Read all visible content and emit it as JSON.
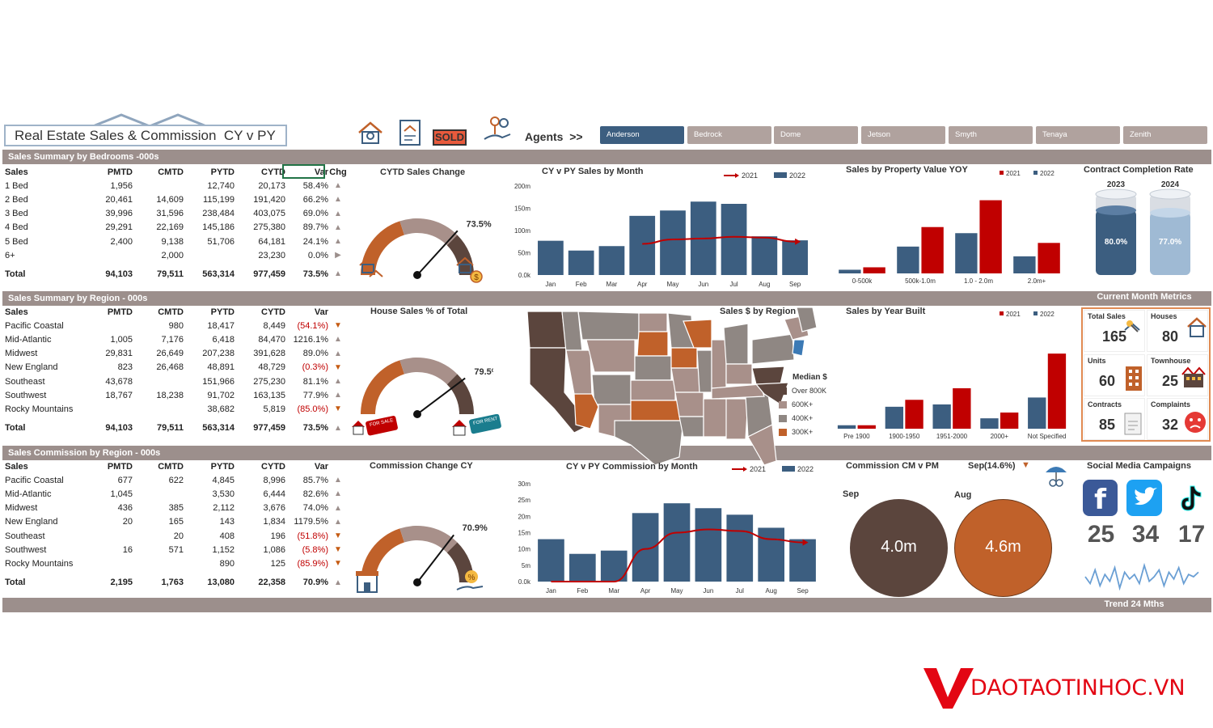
{
  "header": {
    "title": "Real Estate Sales & Commission  CY v PY",
    "agents_label": "Agents  >>",
    "sold_sign": "SOLD"
  },
  "agents": [
    "Anderson",
    "Bedrock",
    "Dome",
    "Jetson",
    "Smyth",
    "Tenaya",
    "Zenith"
  ],
  "bedrooms": {
    "band": "Sales Summary by Bedrooms -000s",
    "headers": [
      "Sales",
      "PMTD",
      "CMTD",
      "PYTD",
      "CYTD",
      "Var",
      "Chg"
    ],
    "rows": [
      [
        "1 Bed",
        "1,956",
        "",
        "12,740",
        "20,173",
        "58.4%",
        "▲"
      ],
      [
        "2 Bed",
        "20,461",
        "14,609",
        "115,199",
        "191,420",
        "66.2%",
        "▲"
      ],
      [
        "3 Bed",
        "39,996",
        "31,596",
        "238,484",
        "403,075",
        "69.0%",
        "▲"
      ],
      [
        "4 Bed",
        "29,291",
        "22,169",
        "145,186",
        "275,380",
        "89.7%",
        "▲"
      ],
      [
        "5 Bed",
        "2,400",
        "9,138",
        "51,706",
        "64,181",
        "24.1%",
        "▲"
      ],
      [
        "6+",
        "",
        "2,000",
        "",
        "23,230",
        "0.0%",
        "▶"
      ]
    ],
    "total": [
      "Total",
      "94,103",
      "79,511",
      "563,314",
      "977,459",
      "73.5%",
      "▲"
    ]
  },
  "region": {
    "band": "Sales Summary by Region - 000s",
    "headers": [
      "Sales",
      "PMTD",
      "CMTD",
      "PYTD",
      "CYTD",
      "Var"
    ],
    "rows": [
      [
        "Pacific Coastal",
        "",
        "980",
        "18,417",
        "8,449",
        "(54.1%)",
        "▼"
      ],
      [
        "Mid-Atlantic",
        "1,005",
        "7,176",
        "6,418",
        "84,470",
        "1216.1%",
        "▲"
      ],
      [
        "Midwest",
        "29,831",
        "26,649",
        "207,238",
        "391,628",
        "89.0%",
        "▲"
      ],
      [
        "New England",
        "823",
        "26,468",
        "48,891",
        "48,729",
        "(0.3%)",
        "▼"
      ],
      [
        "Southeast",
        "43,678",
        "",
        "151,966",
        "275,230",
        "81.1%",
        "▲"
      ],
      [
        "Southwest",
        "18,767",
        "18,238",
        "91,702",
        "163,135",
        "77.9%",
        "▲"
      ],
      [
        "Rocky Mountains",
        "",
        "",
        "38,682",
        "5,819",
        "(85.0%)",
        "▼"
      ]
    ],
    "total": [
      "Total",
      "94,103",
      "79,511",
      "563,314",
      "977,459",
      "73.5%",
      "▲"
    ]
  },
  "commission": {
    "band": "Sales Commission by Region - 000s",
    "headers": [
      "Sales",
      "PMTD",
      "CMTD",
      "PYTD",
      "CYTD",
      "Var"
    ],
    "rows": [
      [
        "Pacific Coastal",
        "677",
        "622",
        "4,845",
        "8,996",
        "85.7%",
        "▲"
      ],
      [
        "Mid-Atlantic",
        "1,045",
        "",
        "3,530",
        "6,444",
        "82.6%",
        "▲"
      ],
      [
        "Midwest",
        "436",
        "385",
        "2,112",
        "3,676",
        "74.0%",
        "▲"
      ],
      [
        "New England",
        "20",
        "165",
        "143",
        "1,834",
        "1179.5%",
        "▲"
      ],
      [
        "Southeast",
        "",
        "20",
        "408",
        "196",
        "(51.8%)",
        "▼"
      ],
      [
        "Southwest",
        "16",
        "571",
        "1,152",
        "1,086",
        "(5.8%)",
        "▼"
      ],
      [
        "Rocky Mountains",
        "",
        "",
        "890",
        "125",
        "(85.9%)",
        "▼"
      ]
    ],
    "total": [
      "Total",
      "2,195",
      "1,763",
      "13,080",
      "22,358",
      "70.9%",
      "▲"
    ]
  },
  "gauges": [
    {
      "title": "CYTD Sales Change",
      "value_label": "73.5%",
      "value": 0.735
    },
    {
      "title": "House Sales % of Total",
      "value_label": "79.5%",
      "value": 0.795
    },
    {
      "title": "Commission Change CY",
      "value_label": "70.9%",
      "value": 0.709
    }
  ],
  "stickers": {
    "for_sale": "FOR SALE",
    "for_rent": "FOR RENT"
  },
  "metrics_band": "Current Month Metrics",
  "metrics": [
    {
      "label": "Total Sales",
      "value": "165"
    },
    {
      "label": "Houses",
      "value": "80"
    },
    {
      "label": "Units",
      "value": "60"
    },
    {
      "label": "Townhouse",
      "value": "25"
    },
    {
      "label": "Contracts",
      "value": "85"
    },
    {
      "label": "Complaints",
      "value": "32"
    }
  ],
  "contract": {
    "title": "Contract Completion Rate",
    "bars": [
      {
        "year": "2023",
        "label": "80.0%",
        "value": 0.8
      },
      {
        "year": "2024",
        "label": "77.0%",
        "value": 0.77
      }
    ]
  },
  "map": {
    "title": "Sales $ by Region",
    "legend_title": "Median $",
    "legend": [
      {
        "label": "Over 800K",
        "color": "#5b453d"
      },
      {
        "label": "600K+",
        "color": "#a8908a"
      },
      {
        "label": "400K+",
        "color": "#8f8783"
      },
      {
        "label": "300K+",
        "color": "#c0612a"
      }
    ]
  },
  "commission_cm_pm": {
    "title": "Commission CM v PM",
    "month": "Sep",
    "change": "(14.6%)",
    "arrow": "▼",
    "cm_label": "Sep",
    "cm_value": "4.0m",
    "pm_label": "Aug",
    "pm_value": "4.6m"
  },
  "social": {
    "title": "Social Media Campaigns",
    "values": [
      "25",
      "34",
      "17"
    ],
    "trend_label": "Trend 24 Mths",
    "trend": [
      8,
      5,
      11,
      4,
      9,
      6,
      12,
      3,
      10,
      7,
      9,
      5,
      13,
      6,
      8,
      11,
      4,
      10,
      7,
      12,
      5,
      9,
      8,
      10
    ]
  },
  "watermark": "DAOTAOTINHOC.VN",
  "colors": {
    "cy": "#3c5e80",
    "py": "#c00000",
    "accent": "#c0612a",
    "brown": "#5b453d",
    "band": "#9c8f8c"
  },
  "chart_data": [
    {
      "id": "sales_month",
      "type": "bar",
      "title": "CY v PY Sales by Month",
      "categories": [
        "Jan",
        "Feb",
        "Mar",
        "Apr",
        "May",
        "Jun",
        "Jul",
        "Aug",
        "Sep"
      ],
      "series": [
        {
          "name": "2022",
          "type": "bar",
          "values": [
            77,
            55,
            65,
            133,
            145,
            165,
            160,
            87,
            78
          ]
        },
        {
          "name": "2021",
          "type": "line",
          "values": [
            null,
            null,
            null,
            70,
            80,
            82,
            86,
            84,
            75
          ]
        }
      ],
      "yticks": [
        "0.0k",
        "50m",
        "100m",
        "150m",
        "200m"
      ],
      "ylim": [
        0,
        200
      ]
    },
    {
      "id": "property_value",
      "type": "bar",
      "title": "Sales by Property Value YOY",
      "categories": [
        "0-500k",
        "500k-1.0m",
        "1.0 - 2.0m",
        "2.0m+"
      ],
      "series": [
        {
          "name": "2021",
          "values": [
            5,
            38,
            60,
            25
          ]
        },
        {
          "name": "2022",
          "values": [
            3,
            22,
            33,
            14
          ]
        }
      ],
      "ylim": [
        0,
        65
      ]
    },
    {
      "id": "year_built",
      "type": "bar",
      "title": "Sales by Year Built",
      "categories": [
        "Pre 1900",
        "1900-1950",
        "1951-2000",
        "2000+",
        "Not Specified"
      ],
      "series": [
        {
          "name": "2021",
          "values": [
            3,
            25,
            35,
            14,
            65
          ]
        },
        {
          "name": "2022",
          "values": [
            3,
            19,
            21,
            9,
            27
          ]
        }
      ],
      "ylim": [
        0,
        70
      ]
    },
    {
      "id": "commission_month",
      "type": "bar",
      "title": "CY v PY Commission by Month",
      "categories": [
        "Jan",
        "Feb",
        "Mar",
        "Apr",
        "May",
        "Jun",
        "Jul",
        "Aug",
        "Sep"
      ],
      "series": [
        {
          "name": "2022",
          "type": "bar",
          "values": [
            13,
            8.5,
            9.5,
            21,
            24,
            22.5,
            20.5,
            16.5,
            13
          ]
        },
        {
          "name": "2021",
          "type": "line",
          "values": [
            0,
            0,
            0,
            10,
            15,
            16,
            15.5,
            13,
            12
          ]
        }
      ],
      "yticks": [
        "0.0k",
        "5m",
        "10m",
        "15m",
        "20m",
        "25m",
        "30m"
      ],
      "ylim": [
        0,
        30
      ]
    }
  ]
}
